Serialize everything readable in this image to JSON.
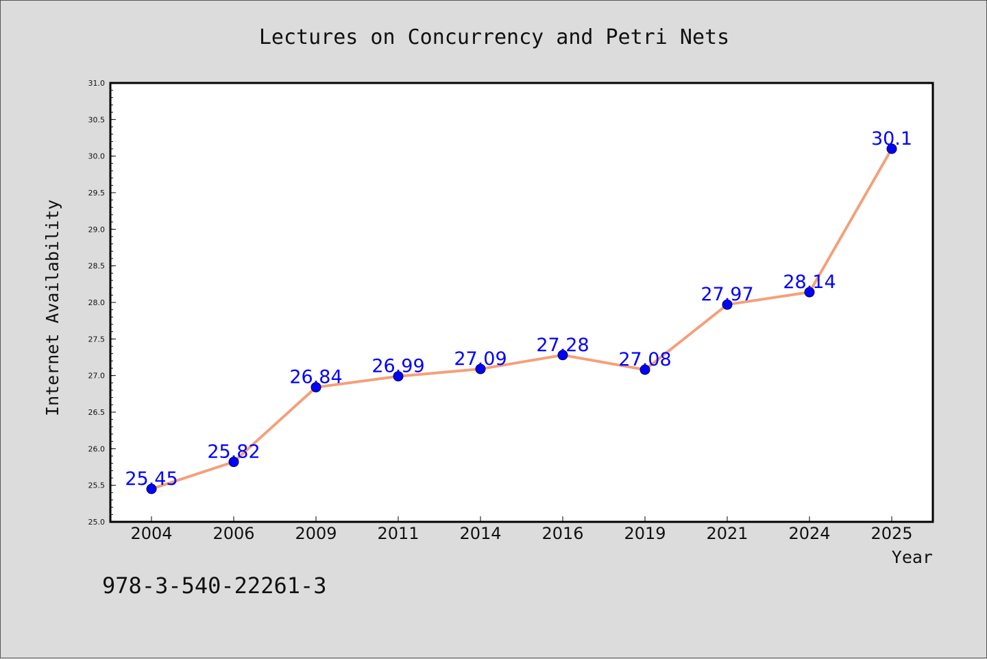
{
  "chart_data": {
    "type": "line",
    "title": "Lectures on Concurrency and Petri Nets",
    "xlabel": "Year",
    "ylabel": "Internet Availability",
    "categories": [
      "2004",
      "2006",
      "2009",
      "2011",
      "2014",
      "2016",
      "2019",
      "2021",
      "2024",
      "2025"
    ],
    "series": [
      {
        "values": [
          25.45,
          25.82,
          26.84,
          26.99,
          27.09,
          27.28,
          27.08,
          27.97,
          28.14,
          30.1
        ],
        "labels": [
          "25.45",
          "25.82",
          "26.84",
          "26.99",
          "27.09",
          "27.28",
          "27.08",
          "27.97",
          "28.14",
          "30.1"
        ],
        "line_color": "#f4a07a",
        "marker_color": "#0000ff"
      }
    ],
    "ylim": [
      25.0,
      31.0
    ],
    "yticks": [
      "25.0",
      "25.5",
      "26.0",
      "26.5",
      "27.0",
      "27.5",
      "28.0",
      "28.5",
      "29.0",
      "29.5",
      "30.0",
      "30.5",
      "31.0"
    ],
    "grid": false,
    "legend": "none"
  },
  "footnote": "978-3-540-22261-3",
  "colors": {
    "background": "#dcdcdc",
    "plot_background": "#ffffff",
    "label_text": "#0000ff"
  }
}
